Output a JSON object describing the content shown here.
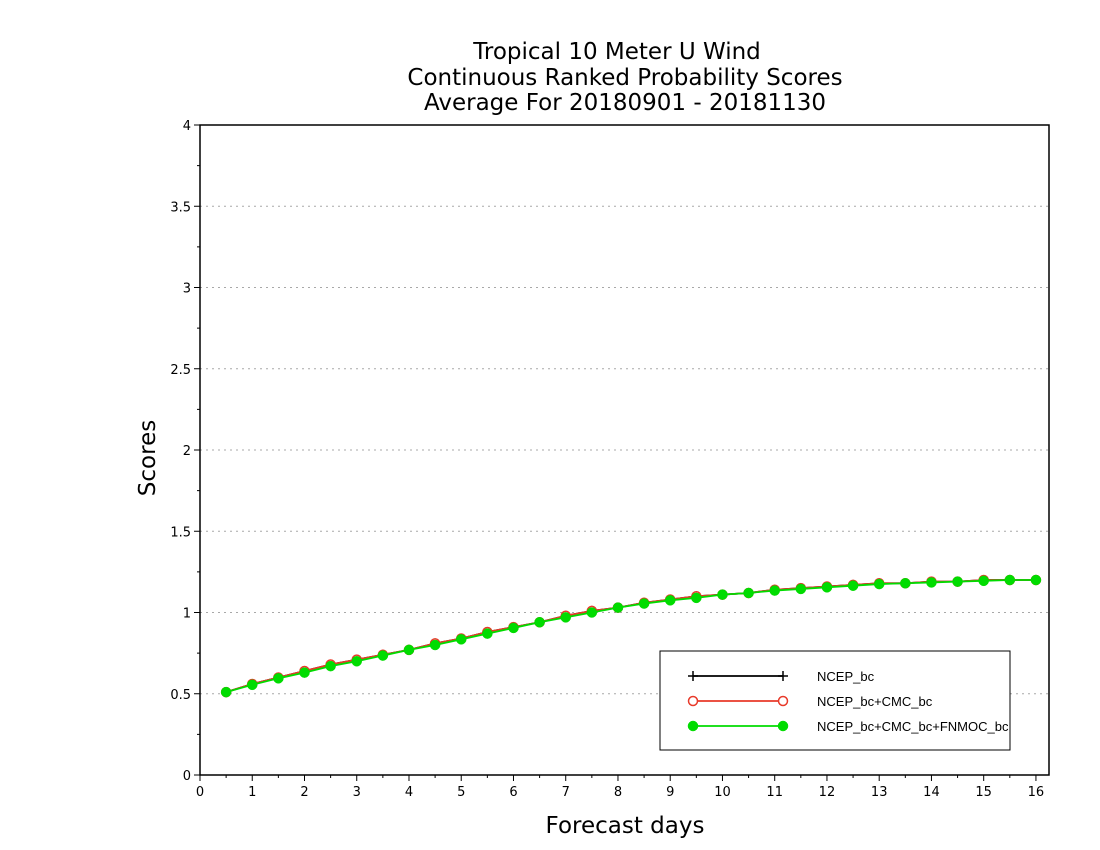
{
  "chart_data": {
    "type": "line",
    "title": [
      "Tropical 10 Meter U Wind",
      "Continuous Ranked Probability Scores",
      "Average For 20180901 - 20181130"
    ],
    "xlabel": "Forecast days",
    "ylabel": "Scores",
    "xlim": [
      0,
      16.25
    ],
    "ylim": [
      0,
      4
    ],
    "xticks": [
      "0",
      "1",
      "2",
      "3",
      "4",
      "5",
      "6",
      "7",
      "8",
      "9",
      "10",
      "11",
      "12",
      "13",
      "14",
      "15",
      "16"
    ],
    "yticks": [
      "0",
      "0.5",
      "1",
      "1.5",
      "2",
      "2.5",
      "3",
      "3.5",
      "4"
    ],
    "grid": "horizontal dotted",
    "legend_position": "bottom-right",
    "x": [
      0.5,
      1,
      1.5,
      2,
      2.5,
      3,
      3.5,
      4,
      4.5,
      5,
      5.5,
      6,
      6.5,
      7,
      7.5,
      8,
      8.5,
      9,
      9.5,
      10,
      10.5,
      11,
      11.5,
      12,
      12.5,
      13,
      13.5,
      14,
      14.5,
      15,
      15.5,
      16
    ],
    "series": [
      {
        "name": "NCEP_bc",
        "color": "#000000",
        "marker": "plus",
        "values": [
          0.51,
          0.56,
          0.6,
          0.64,
          0.68,
          0.71,
          0.74,
          0.77,
          0.81,
          0.84,
          0.88,
          0.91,
          0.94,
          0.98,
          1.01,
          1.03,
          1.06,
          1.08,
          1.1,
          1.11,
          1.12,
          1.14,
          1.15,
          1.16,
          1.17,
          1.18,
          1.18,
          1.19,
          1.19,
          1.2,
          1.2,
          1.2
        ]
      },
      {
        "name": "NCEP_bc+CMC_bc",
        "color": "#e83a2a",
        "marker": "open-circle",
        "values": [
          0.51,
          0.56,
          0.6,
          0.64,
          0.68,
          0.71,
          0.74,
          0.77,
          0.81,
          0.84,
          0.88,
          0.91,
          0.94,
          0.98,
          1.01,
          1.03,
          1.06,
          1.08,
          1.1,
          1.11,
          1.12,
          1.14,
          1.15,
          1.16,
          1.17,
          1.18,
          1.18,
          1.19,
          1.19,
          1.2,
          1.2,
          1.2
        ]
      },
      {
        "name": "NCEP_bc+CMC_bc+FNMOC_bc",
        "color": "#00dc00",
        "marker": "filled-circle",
        "values": [
          0.51,
          0.555,
          0.595,
          0.63,
          0.67,
          0.7,
          0.735,
          0.77,
          0.8,
          0.835,
          0.87,
          0.905,
          0.94,
          0.97,
          1.0,
          1.03,
          1.055,
          1.075,
          1.09,
          1.11,
          1.12,
          1.135,
          1.145,
          1.155,
          1.165,
          1.175,
          1.18,
          1.185,
          1.19,
          1.195,
          1.2,
          1.2
        ]
      }
    ]
  }
}
